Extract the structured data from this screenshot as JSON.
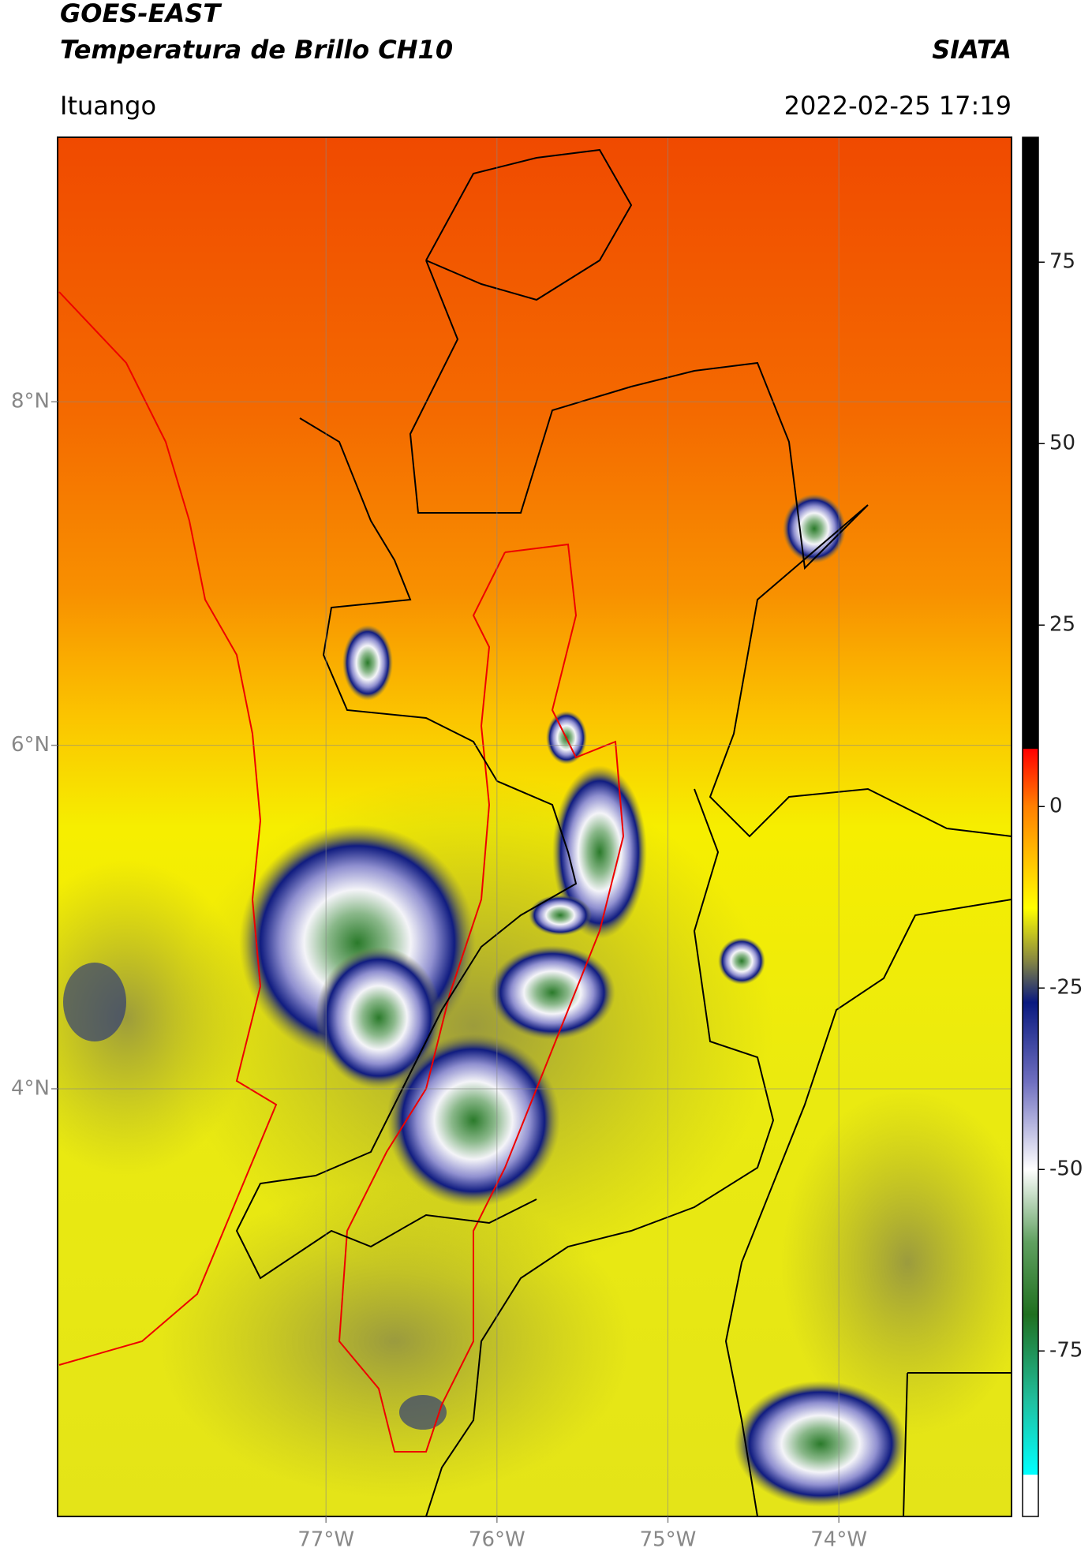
{
  "title": "GOES-EAST",
  "subtitle": "Temperatura de Brillo CH10",
  "agency": "SIATA",
  "location": "Ituango",
  "datetime": "2022-02-25 17:19",
  "map": {
    "xlim": [
      -78.57,
      -72.99
    ],
    "ylim": [
      1.51,
      9.54
    ],
    "xticks": [
      {
        "value": -77,
        "label": "77°W"
      },
      {
        "value": -76,
        "label": "76°W"
      },
      {
        "value": -75,
        "label": "75°W"
      },
      {
        "value": -74,
        "label": "74°W"
      }
    ],
    "yticks": [
      {
        "value": 8,
        "label": "8°N"
      },
      {
        "value": 6,
        "label": "6°N"
      },
      {
        "value": 4,
        "label": "4°N"
      }
    ],
    "grid": true
  },
  "colorbar": {
    "lim": [
      -97.8,
      92.2
    ],
    "ticks": [
      75,
      50,
      25,
      0,
      -25,
      -50,
      -75
    ],
    "stops": [
      {
        "value": 92.2,
        "color": "#000000"
      },
      {
        "value": 8,
        "color": "#000000"
      },
      {
        "value": 7.9,
        "color": "#ff0000"
      },
      {
        "value": 0,
        "color": "#ff8000"
      },
      {
        "value": -14,
        "color": "#ffff00"
      },
      {
        "value": -21,
        "color": "#8a8a40"
      },
      {
        "value": -27,
        "color": "#0a1a80"
      },
      {
        "value": -38,
        "color": "#7070c0"
      },
      {
        "value": -50,
        "color": "#ffffff"
      },
      {
        "value": -60,
        "color": "#60a060"
      },
      {
        "value": -70,
        "color": "#207020"
      },
      {
        "value": -82,
        "color": "#20c0a0"
      },
      {
        "value": -92,
        "color": "#00ffff"
      },
      {
        "value": -92.1,
        "color": "#ffffff"
      },
      {
        "value": -97.8,
        "color": "#ffffff"
      }
    ]
  }
}
